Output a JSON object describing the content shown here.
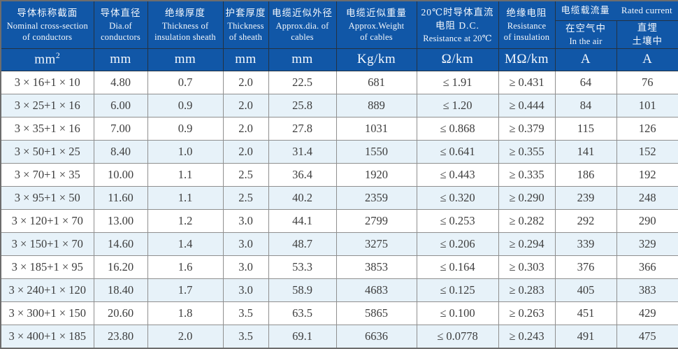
{
  "colors": {
    "header-bg": "#1157a7",
    "alt-row": "#e7f2f9",
    "grid-line": "#8f8f8f",
    "body-text": "#3d3d3d"
  },
  "table": {
    "headers": [
      {
        "zh": "导体标称截面",
        "en": [
          "Nominal cross-section",
          "of conductors"
        ],
        "unit": "mm²"
      },
      {
        "zh": "导体直径",
        "en": [
          "Dia.of",
          "conductors"
        ],
        "unit": "mm"
      },
      {
        "zh": "绝缘厚度",
        "en": [
          "Thickness of",
          "insulation sheath"
        ],
        "unit": "mm"
      },
      {
        "zh": "护套厚度",
        "en": [
          "Thickness",
          "of sheath"
        ],
        "unit": "mm"
      },
      {
        "zh": "电缆近似外径",
        "en": [
          "Approx.dia. of",
          "cables"
        ],
        "unit": "mm"
      },
      {
        "zh": "电缆近似重量",
        "en": [
          "Approx.Weight",
          "of cables"
        ],
        "unit": "Kg/km"
      },
      {
        "zh": "20℃时导体直流",
        "zh2": "电阻 D.C.",
        "en": [
          "Resistance at 20℃"
        ],
        "unit": "Ω/km"
      },
      {
        "zh": "绝缘电阻",
        "en": [
          "Resistance",
          "of insulation"
        ],
        "unit": "MΩ/km"
      }
    ],
    "current_group": {
      "zh": "电缆载流量",
      "en": "Rated current",
      "sub": [
        {
          "zh": "在空气中",
          "en": "In the air",
          "unit": "A"
        },
        {
          "zh": "直埋",
          "zh2": "土壤中",
          "unit": "A"
        }
      ]
    },
    "rows": [
      [
        "3 × 16+1 × 10",
        "4.80",
        "0.7",
        "2.0",
        "22.5",
        "681",
        "≤ 1.91",
        "≥ 0.431",
        "64",
        "76"
      ],
      [
        "3 × 25+1 × 16",
        "6.00",
        "0.9",
        "2.0",
        "25.8",
        "889",
        "≤ 1.20",
        "≥ 0.444",
        "84",
        "101"
      ],
      [
        "3 × 35+1 × 16",
        "7.00",
        "0.9",
        "2.0",
        "27.8",
        "1031",
        "≤ 0.868",
        "≥ 0.379",
        "115",
        "126"
      ],
      [
        "3 × 50+1 × 25",
        "8.40",
        "1.0",
        "2.0",
        "31.4",
        "1550",
        "≤ 0.641",
        "≥ 0.355",
        "141",
        "152"
      ],
      [
        "3 × 70+1 × 35",
        "10.00",
        "1.1",
        "2.5",
        "36.4",
        "1920",
        "≤ 0.443",
        "≥ 0.335",
        "186",
        "192"
      ],
      [
        "3 × 95+1 × 50",
        "11.60",
        "1.1",
        "2.5",
        "40.2",
        "2359",
        "≤ 0.320",
        "≥ 0.290",
        "239",
        "248"
      ],
      [
        "3 × 120+1 × 70",
        "13.00",
        "1.2",
        "3.0",
        "44.1",
        "2799",
        "≤ 0.253",
        "≥ 0.282",
        "292",
        "290"
      ],
      [
        "3 × 150+1 × 70",
        "14.60",
        "1.4",
        "3.0",
        "48.7",
        "3275",
        "≤ 0.206",
        "≥ 0.294",
        "339",
        "329"
      ],
      [
        "3 × 185+1 × 95",
        "16.20",
        "1.6",
        "3.0",
        "53.3",
        "3853",
        "≤ 0.164",
        "≥ 0.303",
        "376",
        "366"
      ],
      [
        "3 × 240+1 × 120",
        "18.40",
        "1.7",
        "3.0",
        "58.9",
        "4683",
        "≤ 0.125",
        "≥ 0.283",
        "405",
        "383"
      ],
      [
        "3 × 300+1 × 150",
        "20.60",
        "1.8",
        "3.5",
        "63.5",
        "5865",
        "≤ 0.100",
        "≥ 0.263",
        "451",
        "429"
      ],
      [
        "3 × 400+1 × 185",
        "23.80",
        "2.0",
        "3.5",
        "69.1",
        "6636",
        "≤ 0.0778",
        "≥ 0.243",
        "491",
        "475"
      ]
    ]
  }
}
